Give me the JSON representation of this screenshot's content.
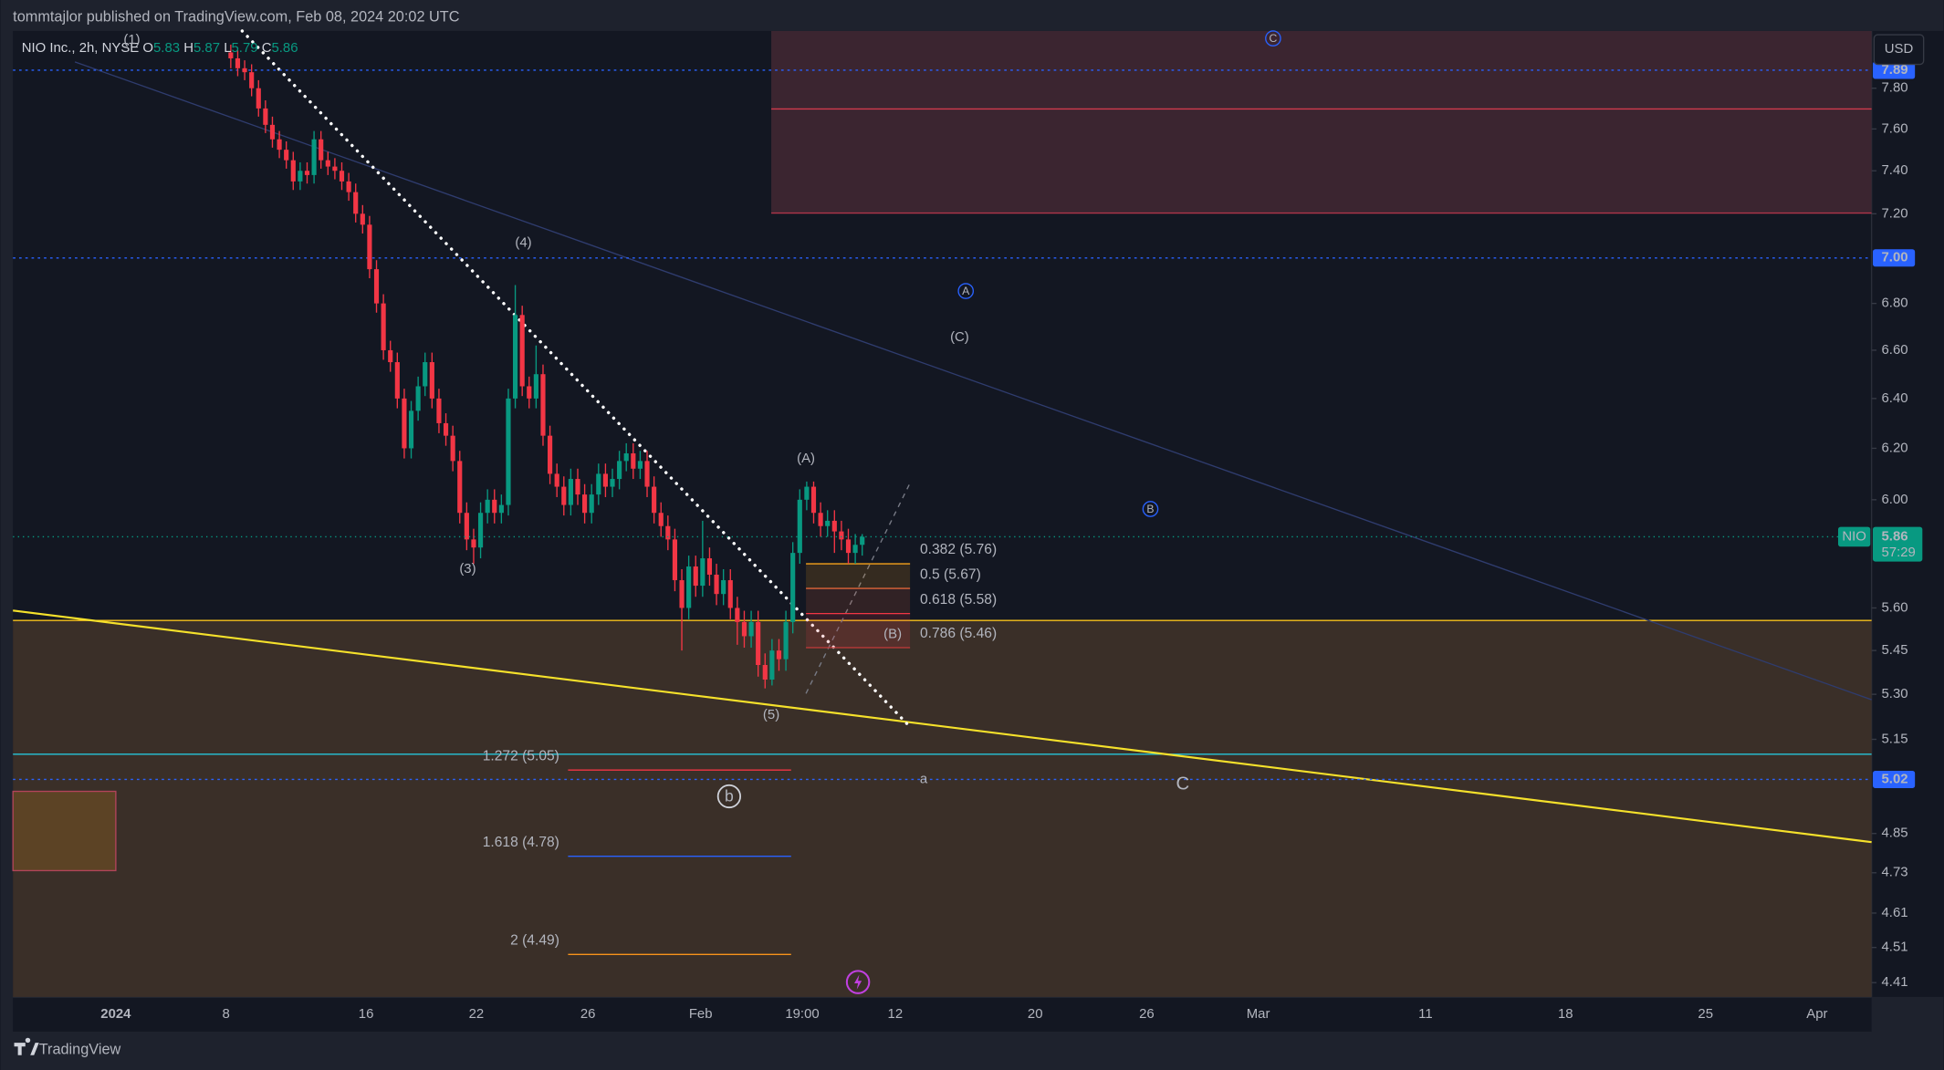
{
  "header": {
    "title": "tommtajlor published on TradingView.com, Feb 08, 2024 20:02 UTC"
  },
  "footer": {
    "brand": "TradingView"
  },
  "toolbar": {
    "currency": "USD"
  },
  "chart_data": {
    "type": "candlestick",
    "title": "NIO Inc., 2h, NYSE",
    "ohlc_letters": [
      "O",
      "H",
      "L",
      "C"
    ],
    "log_scale": true,
    "ylim": [
      4.37,
      8.09
    ],
    "yticks": [
      {
        "value": 7.8,
        "label": "7.80"
      },
      {
        "value": 7.6,
        "label": "7.60"
      },
      {
        "value": 7.4,
        "label": "7.40"
      },
      {
        "value": 7.2,
        "label": "7.20"
      },
      {
        "value": 6.8,
        "label": "6.80"
      },
      {
        "value": 6.6,
        "label": "6.60"
      },
      {
        "value": 6.4,
        "label": "6.40"
      },
      {
        "value": 6.2,
        "label": "6.20"
      },
      {
        "value": 6,
        "label": "6.00"
      },
      {
        "value": 5.6,
        "label": "5.60"
      },
      5.45,
      {
        "value": 5.3,
        "label": "5.30"
      },
      5.15,
      4.85,
      4.73,
      4.61,
      4.51,
      4.41
    ],
    "xticks": [
      "2024",
      "8",
      "16",
      "22",
      "26",
      "Feb",
      "19:00",
      "12",
      "20",
      "26",
      "Mar",
      "11",
      "18",
      "25",
      "Apr"
    ],
    "up_color": "#089981",
    "down_color": "#f23645",
    "open": [
      7.98,
      7.95,
      7.9,
      7.88,
      7.8,
      7.7,
      7.62,
      7.55,
      7.5,
      7.45,
      7.35,
      7.4,
      7.38,
      7.55,
      7.45,
      7.42,
      7.4,
      7.35,
      7.3,
      7.2,
      7.15,
      6.95,
      6.8,
      6.6,
      6.55,
      6.4,
      6.2,
      6.35,
      6.45,
      6.55,
      6.4,
      6.3,
      6.25,
      6.15,
      5.95,
      5.85,
      5.82,
      5.95,
      6.0,
      5.95,
      5.98,
      6.4,
      6.75,
      6.45,
      6.4,
      6.5,
      6.25,
      6.1,
      6.05,
      5.98,
      6.08,
      6.02,
      5.95,
      6.02,
      6.1,
      6.05,
      6.08,
      6.15,
      6.18,
      6.12,
      6.15,
      6.05,
      5.95,
      5.9,
      5.85,
      5.7,
      5.6,
      5.75,
      5.68,
      5.78,
      5.72,
      5.65,
      5.7,
      5.6,
      5.55,
      5.5,
      5.55,
      5.4,
      5.35,
      5.45,
      5.42,
      5.55,
      5.8,
      6.0,
      6.05,
      5.95,
      5.9,
      5.92,
      5.88,
      5.85,
      5.8,
      5.83
    ],
    "high": [
      8.02,
      7.99,
      7.94,
      7.92,
      7.84,
      7.74,
      7.66,
      7.59,
      7.54,
      7.49,
      7.44,
      7.44,
      7.59,
      7.59,
      7.49,
      7.46,
      7.44,
      7.39,
      7.34,
      7.24,
      7.19,
      6.99,
      6.84,
      6.64,
      6.59,
      6.44,
      6.39,
      6.49,
      6.59,
      6.59,
      6.44,
      6.34,
      6.29,
      6.19,
      5.99,
      5.89,
      5.99,
      6.04,
      6.04,
      6.02,
      6.44,
      6.88,
      6.79,
      6.49,
      6.62,
      6.54,
      6.29,
      6.14,
      6.09,
      6.12,
      6.12,
      6.06,
      6.06,
      6.14,
      6.14,
      6.12,
      6.19,
      6.22,
      6.22,
      6.19,
      6.19,
      6.09,
      5.99,
      5.94,
      5.89,
      5.74,
      5.79,
      5.79,
      5.92,
      5.82,
      5.76,
      5.74,
      5.74,
      5.64,
      5.59,
      5.59,
      5.59,
      5.44,
      5.49,
      5.49,
      5.59,
      5.84,
      6.04,
      6.07,
      6.07,
      5.99,
      5.96,
      5.96,
      5.92,
      5.89,
      5.87,
      5.87
    ],
    "low": [
      7.9,
      7.86,
      7.84,
      7.76,
      7.66,
      7.58,
      7.51,
      7.46,
      7.41,
      7.31,
      7.31,
      7.34,
      7.34,
      7.41,
      7.38,
      7.36,
      7.31,
      7.26,
      7.16,
      7.11,
      6.91,
      6.76,
      6.56,
      6.51,
      6.36,
      6.16,
      6.16,
      6.31,
      6.41,
      6.36,
      6.26,
      6.21,
      6.11,
      5.91,
      5.81,
      5.76,
      5.78,
      5.91,
      5.91,
      5.91,
      5.94,
      6.36,
      6.41,
      6.36,
      6.36,
      6.21,
      6.06,
      6.01,
      5.94,
      5.94,
      5.98,
      5.91,
      5.91,
      5.98,
      6.01,
      6.01,
      6.04,
      6.11,
      6.08,
      6.08,
      6.01,
      5.91,
      5.86,
      5.81,
      5.66,
      5.45,
      5.56,
      5.64,
      5.64,
      5.68,
      5.61,
      5.61,
      5.56,
      5.47,
      5.46,
      5.46,
      5.36,
      5.32,
      5.33,
      5.38,
      5.38,
      5.51,
      5.76,
      5.96,
      5.91,
      5.86,
      5.86,
      5.8,
      5.81,
      5.76,
      5.76,
      5.79
    ],
    "close": [
      7.95,
      7.9,
      7.88,
      7.8,
      7.7,
      7.62,
      7.55,
      7.5,
      7.45,
      7.35,
      7.4,
      7.38,
      7.55,
      7.45,
      7.42,
      7.4,
      7.35,
      7.3,
      7.2,
      7.15,
      6.95,
      6.8,
      6.6,
      6.55,
      6.4,
      6.2,
      6.35,
      6.45,
      6.55,
      6.4,
      6.3,
      6.25,
      6.15,
      5.95,
      5.85,
      5.82,
      5.95,
      6.0,
      5.95,
      5.98,
      6.4,
      6.75,
      6.45,
      6.4,
      6.5,
      6.25,
      6.1,
      6.05,
      5.98,
      6.08,
      6.02,
      5.95,
      6.02,
      6.1,
      6.05,
      6.08,
      6.15,
      6.18,
      6.12,
      6.15,
      6.05,
      5.95,
      5.9,
      5.85,
      5.7,
      5.6,
      5.75,
      5.68,
      5.78,
      5.72,
      5.65,
      5.7,
      5.6,
      5.55,
      5.5,
      5.55,
      5.4,
      5.35,
      5.45,
      5.42,
      5.55,
      5.8,
      6.0,
      6.05,
      5.95,
      5.9,
      5.92,
      5.88,
      5.85,
      5.8,
      5.83,
      5.86
    ],
    "price_lines": [
      {
        "value": 7.89,
        "color": "#2962ff"
      },
      {
        "value": 7.0,
        "label": "7.00",
        "color": "#2962ff"
      },
      {
        "value": 5.02,
        "color": "#2962ff"
      }
    ],
    "current_price": {
      "symbol": "NIO",
      "countdown": "57:29",
      "color": "#089981"
    },
    "fib_retracement": [
      {
        "label": "0.382 (5.76)",
        "value": 5.76,
        "color": "#f7a21b"
      },
      {
        "label": "0.5 (5.67)",
        "value": 5.67,
        "color": "#e0653a"
      },
      {
        "label": "0.618 (5.58)",
        "value": 5.58,
        "color": "#f23645"
      },
      {
        "label": "0.786 (5.46)",
        "value": 5.46,
        "color": "#c43a3a"
      }
    ],
    "fib_extension": [
      {
        "label": "1.272 (5.05)",
        "value": 5.05,
        "color": "#f23645"
      },
      {
        "label": "1.618 (4.78)",
        "value": 4.78,
        "color": "#2962ff"
      },
      {
        "label": "2 (4.49)",
        "value": 4.49,
        "color": "#f7931a"
      }
    ],
    "waves": [
      "(1)",
      "(3)",
      "(4)",
      "(5)",
      "(A)",
      "(B)",
      "(C)",
      "A",
      "B",
      "C",
      "b",
      "a",
      "C"
    ]
  }
}
